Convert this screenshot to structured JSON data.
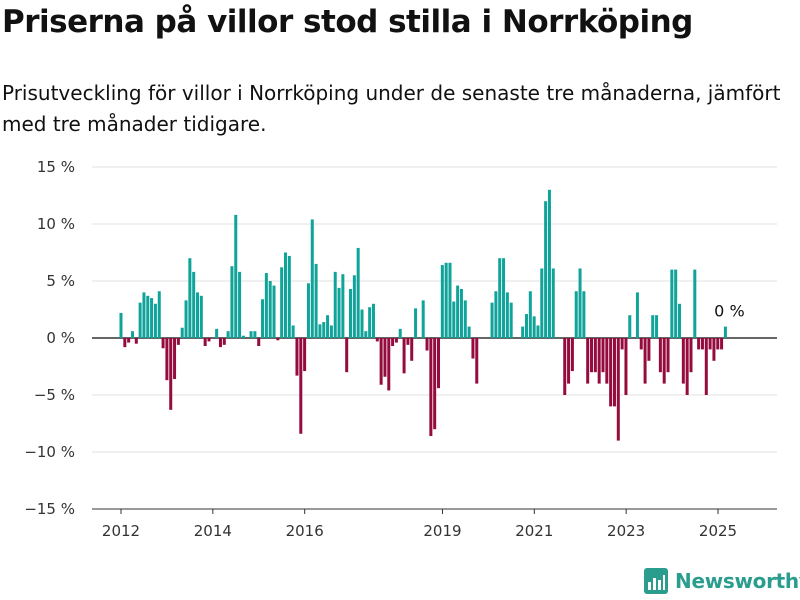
{
  "title": "Priserna på villor stod stilla i Norrköping",
  "subtitle": "Prisutveckling för villor i Norrköping under de senaste tre månaderna, jämfört med tre månader tidigare.",
  "brand": {
    "name": "Newsworthy",
    "color": "#2a9d8f"
  },
  "colors": {
    "positive": "#0fa39a",
    "negative": "#950b3d",
    "grid": "#e2e2e2",
    "axis": "#333333"
  },
  "chart_data": {
    "type": "bar",
    "x_start": 2012,
    "x_step": 0.0833,
    "values": [
      2.2,
      -0.8,
      -0.4,
      0.6,
      -0.5,
      3.1,
      4,
      3.7,
      3.5,
      3,
      4.1,
      -0.9,
      -3.7,
      -6.3,
      -3.6,
      -0.6,
      0.9,
      3.3,
      7,
      5.8,
      4,
      3.7,
      -0.7,
      -0.3,
      0,
      0.8,
      -0.8,
      -0.6,
      0.6,
      6.3,
      10.8,
      5.8,
      0.2,
      0,
      0.6,
      0.6,
      -0.7,
      3.4,
      5.7,
      5,
      4.6,
      -0.2,
      6.2,
      7.5,
      7.2,
      1.1,
      -3.3,
      -8.4,
      -2.9,
      4.8,
      10.4,
      6.5,
      1.2,
      1.4,
      2,
      1.1,
      5.8,
      4.4,
      5.6,
      -3,
      4.3,
      5.5,
      7.9,
      2.5,
      0.6,
      2.7,
      3,
      -0.3,
      -4.1,
      -3.4,
      -4.6,
      -0.7,
      -0.4,
      0.8,
      -3.1,
      -0.6,
      -2,
      2.6,
      0,
      3.3,
      -1.1,
      -8.6,
      -8,
      -4.4,
      6.4,
      6.6,
      6.6,
      3.2,
      4.6,
      4.3,
      3.3,
      1,
      -1.8,
      -4,
      0,
      0,
      0,
      3.1,
      4.1,
      7,
      7,
      4,
      3.1,
      0,
      0,
      1,
      2.1,
      4.1,
      1.9,
      1.1,
      6.1,
      12,
      13,
      6.1,
      0,
      0,
      -5,
      -4,
      -2.9,
      4.1,
      6.1,
      4.1,
      -4,
      -3,
      -3,
      -4,
      -3,
      -4,
      -6,
      -6,
      -9,
      -1,
      -5,
      2,
      0,
      4,
      -1,
      -4,
      -2,
      2,
      2,
      -3,
      -4,
      -3,
      6,
      6,
      3,
      -4,
      -5,
      -3,
      6,
      -1,
      -1,
      -5,
      -1,
      -2,
      -1,
      -1,
      1
    ],
    "y_ticks": [
      15,
      10,
      5,
      0,
      -5,
      -10,
      -15
    ],
    "y_tick_labels": [
      "15 %",
      "10 %",
      "5 %",
      "0 %",
      "−5 %",
      "−10 %",
      "−15 %"
    ],
    "ylim": [
      -15,
      15
    ],
    "x_ticks": [
      2012,
      2014,
      2016,
      2019,
      2021,
      2023,
      2025
    ],
    "x_tick_labels": [
      "2012",
      "2014",
      "2016",
      "2019",
      "2021",
      "2023",
      "2025"
    ],
    "annotation": {
      "text": "0 %"
    },
    "grid": true
  }
}
